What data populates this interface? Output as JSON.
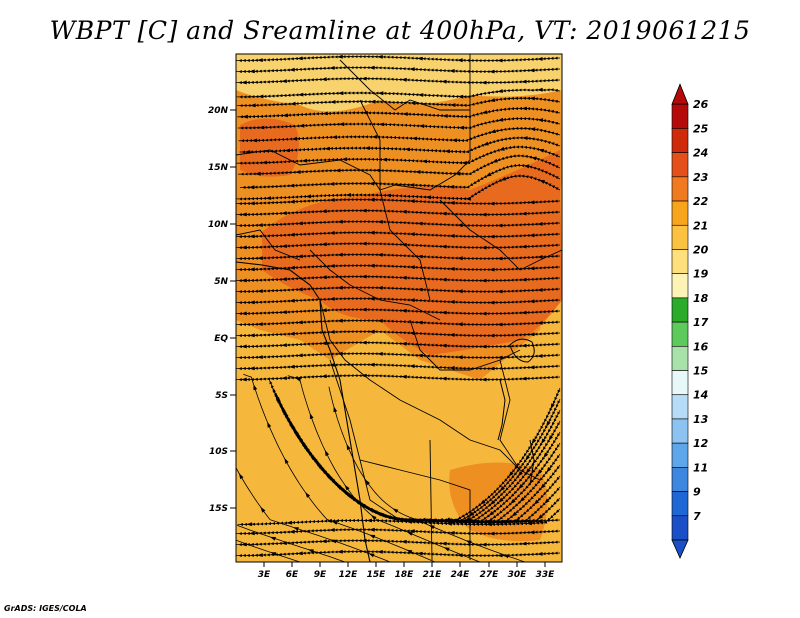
{
  "title": "WBPT [C] and Sreamline at 400hPa, VT: 2019061215",
  "credit": "GrADS: IGES/COLA",
  "map": {
    "lat_ticks": [
      "20N",
      "15N",
      "10N",
      "5N",
      "EQ",
      "5S",
      "10S",
      "15S"
    ],
    "lon_ticks": [
      "3E",
      "6E",
      "9E",
      "12E",
      "15E",
      "18E",
      "21E",
      "24E",
      "27E",
      "30E",
      "33E"
    ],
    "dominant_fill_colors": [
      "#f5b83d",
      "#ee8f22",
      "#e86a1f",
      "#f8d26c"
    ]
  },
  "colorbar": {
    "labels": [
      "26",
      "25",
      "24",
      "23",
      "22",
      "21",
      "20",
      "19",
      "18",
      "17",
      "16",
      "15",
      "14",
      "13",
      "12",
      "11",
      "9",
      "7"
    ],
    "colors": [
      "#b40a0a",
      "#cf2b0b",
      "#e5501a",
      "#f07a20",
      "#f7a51c",
      "#fbc140",
      "#fde07b",
      "#fdf3b6",
      "#2aab2a",
      "#5ccb5c",
      "#a8e2a8",
      "#e8f7f7",
      "#b7dcf7",
      "#8cc3f1",
      "#5ea6ea",
      "#3d87df",
      "#2067d6",
      "#1a4fc8"
    ]
  }
}
